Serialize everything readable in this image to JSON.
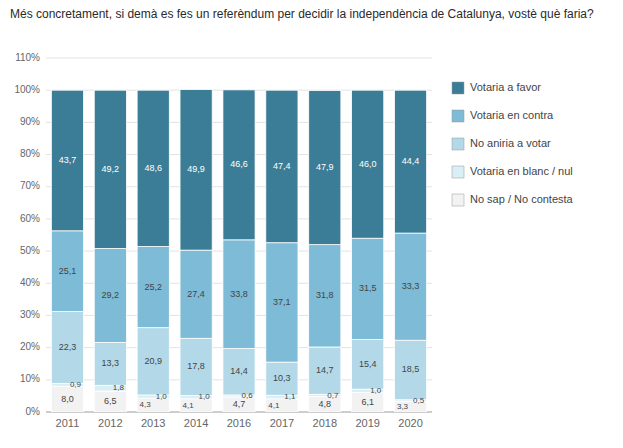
{
  "chart_data": {
    "type": "bar",
    "stacked": true,
    "title": "Més concretament, si demà es fes un referèndum per decidir la independència de Catalunya, vostè què faria?",
    "categories": [
      "2011",
      "2012",
      "2013",
      "2014",
      "2016",
      "2017",
      "2018",
      "2019",
      "2020"
    ],
    "series": [
      {
        "name": "No sap / No contesta",
        "color": "#f2f2f2",
        "values": [
          8.0,
          6.5,
          4.3,
          4.1,
          4.7,
          4.1,
          4.8,
          6.1,
          3.3
        ],
        "value_labels": [
          "8,0",
          "6,5",
          "4,3",
          "4,1",
          "4,7",
          "4,1",
          "4,8",
          "6,1",
          "3,3"
        ]
      },
      {
        "name": "Votaria en blanc / nul",
        "color": "#daeef5",
        "values": [
          0.9,
          1.8,
          1.0,
          1.0,
          0.6,
          1.1,
          0.7,
          1.0,
          0.5
        ],
        "value_labels": [
          "0,9",
          "1,8",
          "1,0",
          "1,0",
          "0,6",
          "1,1",
          "0,7",
          "1,0",
          "0,5"
        ]
      },
      {
        "name": "No aniria a votar",
        "color": "#b3d9e8",
        "values": [
          22.3,
          13.3,
          20.9,
          17.8,
          14.4,
          10.3,
          14.7,
          15.4,
          18.5
        ],
        "value_labels": [
          "22,3",
          "13,3",
          "20,9",
          "17,8",
          "14,4",
          "10,3",
          "14,7",
          "15,4",
          "18,5"
        ]
      },
      {
        "name": "Votaria en contra",
        "color": "#7dbbd6",
        "values": [
          25.1,
          29.2,
          25.2,
          27.4,
          33.8,
          37.1,
          31.8,
          31.5,
          33.3
        ],
        "value_labels": [
          "25,1",
          "29,2",
          "25,2",
          "27,4",
          "33,8",
          "37,1",
          "31,8",
          "31,5",
          "33,3"
        ]
      },
      {
        "name": "Votaria a favor",
        "color": "#3b7d96",
        "values": [
          43.7,
          49.2,
          48.6,
          49.9,
          46.6,
          47.4,
          47.9,
          46.0,
          44.4
        ],
        "value_labels": [
          "43,7",
          "49,2",
          "48,6",
          "49,9",
          "46,6",
          "47,4",
          "47,9",
          "46,0",
          "44,4"
        ]
      }
    ],
    "ylim": [
      0,
      110
    ],
    "yticks": [
      {
        "value": 0,
        "label": "0%"
      },
      {
        "value": 10,
        "label": "10%"
      },
      {
        "value": 20,
        "label": "20%"
      },
      {
        "value": 30,
        "label": "30%"
      },
      {
        "value": 40,
        "label": "40%"
      },
      {
        "value": 50,
        "label": "50%"
      },
      {
        "value": 60,
        "label": "60%"
      },
      {
        "value": 70,
        "label": "70%"
      },
      {
        "value": 80,
        "label": "80%"
      },
      {
        "value": 90,
        "label": "90%"
      },
      {
        "value": 100,
        "label": "100%"
      },
      {
        "value": 110,
        "label": "110%"
      }
    ],
    "grid": true,
    "data_labels": true,
    "legend": "right"
  }
}
